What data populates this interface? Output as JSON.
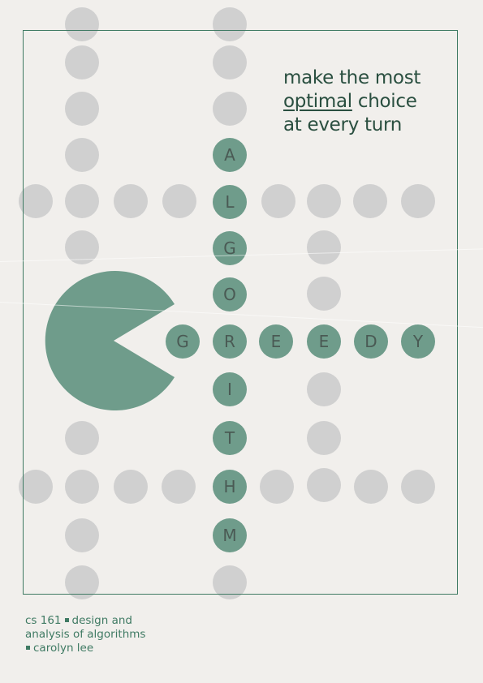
{
  "headline": {
    "line1": "make the most",
    "line2_underlined": "optimal",
    "line2_rest": " choice",
    "line3": "at every turn"
  },
  "vertical_word": [
    "A",
    "L",
    "G",
    "O",
    "R",
    "I",
    "T",
    "H",
    "M"
  ],
  "horizontal_word": [
    "G",
    "R",
    "E",
    "E",
    "D",
    "Y"
  ],
  "credit": {
    "course": "cs 161",
    "title_part1": "design and",
    "title_part2": "analysis of algorithms",
    "author": "carolyn lee"
  },
  "colors": {
    "background": "#f1efec",
    "accent_green": "#6f9c8b",
    "dot_grey": "#d0d0d0",
    "frame_green": "#3f7a63",
    "text_dark_green": "#2a4f40"
  },
  "icons": [
    "pacman-icon"
  ]
}
